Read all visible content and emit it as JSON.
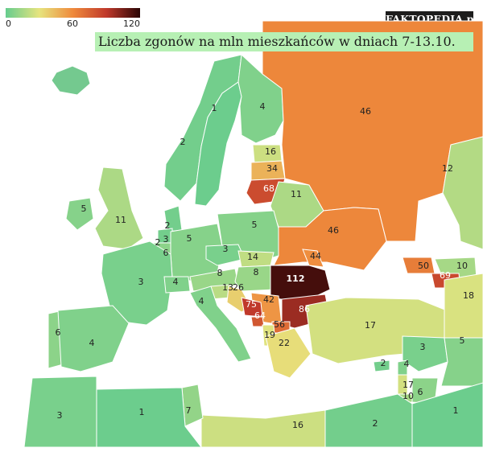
{
  "brand": "FAKTOPEDIA.pl",
  "title": "Liczba zgonów na mln mieszkańców w dniach 7-13.10.",
  "legend": {
    "ticks": [
      "0",
      "60",
      "120"
    ],
    "min": 0,
    "max": 120,
    "colors": [
      "#66cc8e",
      "#e6e47e",
      "#ef8a3c",
      "#c0392b",
      "#2a0505"
    ]
  },
  "map": {
    "sea_color": "#ffffff",
    "regions": [
      {
        "name": "Iceland",
        "value": null,
        "label": ""
      },
      {
        "name": "Norway",
        "value": 2,
        "label": "2"
      },
      {
        "name": "Sweden",
        "value": 1,
        "label": "1"
      },
      {
        "name": "Finland",
        "value": 4,
        "label": "4"
      },
      {
        "name": "Estonia",
        "value": 16,
        "label": "16"
      },
      {
        "name": "Latvia",
        "value": 34,
        "label": "34"
      },
      {
        "name": "Lithuania",
        "value": 68,
        "label": "68"
      },
      {
        "name": "Belarus",
        "value": 11,
        "label": "11"
      },
      {
        "name": "Russia",
        "value": 46,
        "label": "46"
      },
      {
        "name": "Kazakhstan",
        "value": 12,
        "label": "12"
      },
      {
        "name": "Ireland",
        "value": 5,
        "label": "5"
      },
      {
        "name": "United Kingdom",
        "value": 11,
        "label": "11"
      },
      {
        "name": "Denmark",
        "value": 2,
        "label": "2"
      },
      {
        "name": "Netherlands",
        "value": 2,
        "label": "2"
      },
      {
        "name": "Belgium",
        "value": 6,
        "label": "6"
      },
      {
        "name": "Luxembourg",
        "value": 3,
        "label": "3"
      },
      {
        "name": "Germany",
        "value": 5,
        "label": "5"
      },
      {
        "name": "Poland",
        "value": 5,
        "label": "5"
      },
      {
        "name": "Czechia",
        "value": 3,
        "label": "3"
      },
      {
        "name": "Slovakia",
        "value": 14,
        "label": "14"
      },
      {
        "name": "Ukraine",
        "value": 46,
        "label": "46"
      },
      {
        "name": "Moldova",
        "value": 44,
        "label": "44"
      },
      {
        "name": "France",
        "value": 3,
        "label": "3"
      },
      {
        "name": "Switzerland",
        "value": 4,
        "label": "4"
      },
      {
        "name": "Austria",
        "value": 8,
        "label": "8"
      },
      {
        "name": "Hungary",
        "value": 8,
        "label": "8"
      },
      {
        "name": "Slovenia",
        "value": 13,
        "label": "13"
      },
      {
        "name": "Croatia",
        "value": 26,
        "label": "26"
      },
      {
        "name": "Romania",
        "value": 112,
        "label": "112"
      },
      {
        "name": "Serbia",
        "value": 42,
        "label": "42"
      },
      {
        "name": "Bosnia and Herzegovina",
        "value": 75,
        "label": "75"
      },
      {
        "name": "Montenegro",
        "value": 64,
        "label": "64"
      },
      {
        "name": "Bulgaria",
        "value": 86,
        "label": "86"
      },
      {
        "name": "North Macedonia",
        "value": 56,
        "label": "56"
      },
      {
        "name": "Albania",
        "value": 19,
        "label": "19"
      },
      {
        "name": "Greece",
        "value": 22,
        "label": "22"
      },
      {
        "name": "Italy",
        "value": 4,
        "label": "4"
      },
      {
        "name": "Portugal",
        "value": 6,
        "label": "6"
      },
      {
        "name": "Spain",
        "value": 4,
        "label": "4"
      },
      {
        "name": "Turkey",
        "value": 17,
        "label": "17"
      },
      {
        "name": "Georgia",
        "value": 50,
        "label": "50"
      },
      {
        "name": "Azerbaijan",
        "value": 10,
        "label": "10"
      },
      {
        "name": "Armenia",
        "value": 69,
        "label": "69"
      },
      {
        "name": "Iran",
        "value": 18,
        "label": "18"
      },
      {
        "name": "Cyprus",
        "value": 2,
        "label": "2"
      },
      {
        "name": "Syria",
        "value": 3,
        "label": "3"
      },
      {
        "name": "Iraq",
        "value": 5,
        "label": "5"
      },
      {
        "name": "Lebanon",
        "value": 4,
        "label": "4"
      },
      {
        "name": "Israel",
        "value": 17,
        "label": "17"
      },
      {
        "name": "Palestine",
        "value": 10,
        "label": "10"
      },
      {
        "name": "Jordan",
        "value": 6,
        "label": "6"
      },
      {
        "name": "Saudi Arabia",
        "value": 1,
        "label": "1"
      },
      {
        "name": "Egypt",
        "value": 2,
        "label": "2"
      },
      {
        "name": "Libya",
        "value": 16,
        "label": "16"
      },
      {
        "name": "Tunisia",
        "value": 7,
        "label": "7"
      },
      {
        "name": "Algeria",
        "value": 1,
        "label": "1"
      },
      {
        "name": "Morocco",
        "value": 3,
        "label": "3"
      }
    ]
  }
}
